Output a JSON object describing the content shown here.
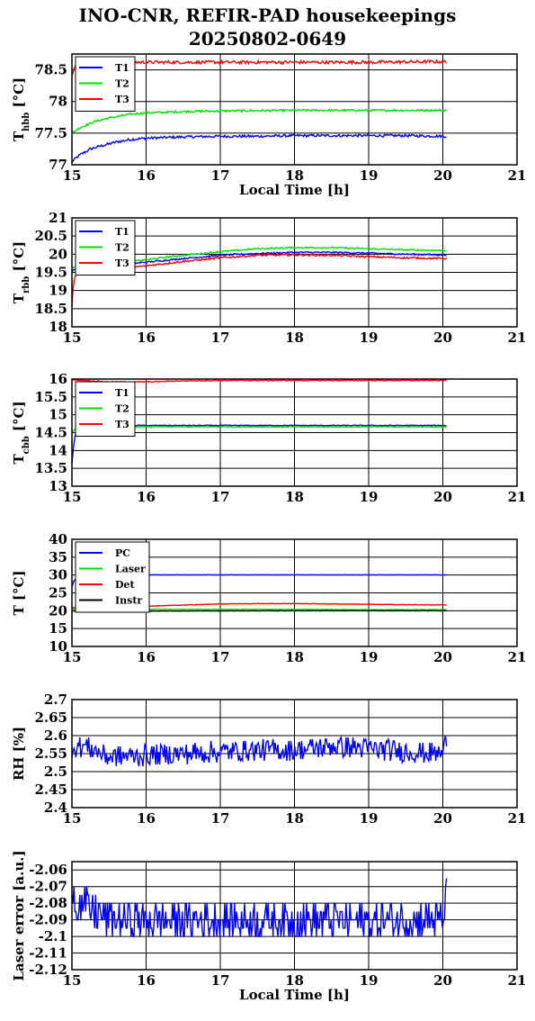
{
  "title_line1": "INO-CNR, REFIR-PAD housekeepings",
  "title_line2": "20250802-0649",
  "chart_data": [
    {
      "type": "line",
      "ylabel_main": "T",
      "ylabel_sub": "hbb",
      "ylabel_unit": "[°C]",
      "xlabel": "Local Time [h]",
      "xlim": [
        15,
        21
      ],
      "ylim": [
        77,
        78.75
      ],
      "yticks": [
        77,
        77.5,
        78,
        78.5
      ],
      "xticks": [
        15,
        16,
        17,
        18,
        19,
        20,
        21
      ],
      "ytick_labels": [
        "77",
        "77.5",
        "78",
        "78.5"
      ],
      "xtick_labels": [
        "15",
        "16",
        "17",
        "18",
        "19",
        "20",
        "21"
      ],
      "grid": true,
      "legend_position": "top-left",
      "series": [
        {
          "name": "T1",
          "color": "#0000ff",
          "points": [
            [
              15,
              77.05
            ],
            [
              15.1,
              77.15
            ],
            [
              15.25,
              77.25
            ],
            [
              15.4,
              77.3
            ],
            [
              15.6,
              77.36
            ],
            [
              15.8,
              77.4
            ],
            [
              16,
              77.42
            ],
            [
              16.5,
              77.44
            ],
            [
              17,
              77.45
            ],
            [
              17.5,
              77.45
            ],
            [
              18,
              77.46
            ],
            [
              18.5,
              77.46
            ],
            [
              19,
              77.46
            ],
            [
              19.5,
              77.46
            ],
            [
              20.05,
              77.45
            ]
          ],
          "noise": 0.02
        },
        {
          "name": "T2",
          "color": "#00e000",
          "points": [
            [
              15,
              77.5
            ],
            [
              15.1,
              77.58
            ],
            [
              15.3,
              77.68
            ],
            [
              15.5,
              77.74
            ],
            [
              15.8,
              77.8
            ],
            [
              16,
              77.82
            ],
            [
              16.5,
              77.84
            ],
            [
              17,
              77.85
            ],
            [
              18,
              77.86
            ],
            [
              19,
              77.86
            ],
            [
              20.05,
              77.86
            ]
          ],
          "noise": 0.015
        },
        {
          "name": "T3",
          "color": "#ff0000",
          "points": [
            [
              15,
              78.4
            ],
            [
              15.03,
              78.55
            ],
            [
              15.1,
              78.6
            ],
            [
              15.5,
              78.62
            ],
            [
              16,
              78.62
            ],
            [
              17,
              78.62
            ],
            [
              18,
              78.62
            ],
            [
              19,
              78.62
            ],
            [
              20.05,
              78.63
            ]
          ],
          "noise": 0.025
        }
      ]
    },
    {
      "type": "line",
      "ylabel_main": "T",
      "ylabel_sub": "rbb",
      "ylabel_unit": "[°C]",
      "xlabel": "",
      "xlim": [
        15,
        21
      ],
      "ylim": [
        18,
        21
      ],
      "yticks": [
        18,
        18.5,
        19,
        19.5,
        20,
        20.5,
        21
      ],
      "xticks": [
        15,
        16,
        17,
        18,
        19,
        20,
        21
      ],
      "ytick_labels": [
        "18",
        "18.5",
        "19",
        "19.5",
        "20",
        "20.5",
        "21"
      ],
      "xtick_labels": [
        "15",
        "16",
        "17",
        "18",
        "19",
        "20",
        "21"
      ],
      "grid": true,
      "legend_position": "top-left",
      "series": [
        {
          "name": "T1",
          "color": "#0000ff",
          "points": [
            [
              15,
              19.55
            ],
            [
              15.2,
              19.6
            ],
            [
              15.5,
              19.68
            ],
            [
              16,
              19.78
            ],
            [
              16.5,
              19.88
            ],
            [
              17,
              19.97
            ],
            [
              17.5,
              20.02
            ],
            [
              18,
              20.05
            ],
            [
              18.5,
              20.05
            ],
            [
              19,
              20.03
            ],
            [
              19.5,
              20.0
            ],
            [
              20.05,
              19.98
            ]
          ],
          "noise": 0.02
        },
        {
          "name": "T2",
          "color": "#00e000",
          "points": [
            [
              15,
              19.62
            ],
            [
              15.2,
              19.67
            ],
            [
              15.5,
              19.73
            ],
            [
              16,
              19.85
            ],
            [
              16.5,
              19.97
            ],
            [
              17,
              20.07
            ],
            [
              17.5,
              20.15
            ],
            [
              18,
              20.18
            ],
            [
              18.5,
              20.18
            ],
            [
              19,
              20.15
            ],
            [
              19.5,
              20.12
            ],
            [
              20.05,
              20.1
            ]
          ],
          "noise": 0.02
        },
        {
          "name": "T3",
          "color": "#ff0000",
          "points": [
            [
              15,
              18.55
            ],
            [
              15.02,
              19.2
            ],
            [
              15.06,
              19.48
            ],
            [
              15.2,
              19.52
            ],
            [
              15.5,
              19.58
            ],
            [
              16,
              19.68
            ],
            [
              16.5,
              19.8
            ],
            [
              17,
              19.9
            ],
            [
              17.5,
              19.97
            ],
            [
              18,
              19.98
            ],
            [
              18.5,
              19.97
            ],
            [
              19,
              19.93
            ],
            [
              19.5,
              19.9
            ],
            [
              20.05,
              19.88
            ]
          ],
          "noise": 0.025
        }
      ]
    },
    {
      "type": "line",
      "ylabel_main": "T",
      "ylabel_sub": "cbb",
      "ylabel_unit": "[°C]",
      "xlabel": "",
      "xlim": [
        15,
        21
      ],
      "ylim": [
        13,
        16
      ],
      "yticks": [
        13,
        13.5,
        14,
        14.5,
        15,
        15.5,
        16
      ],
      "xticks": [
        15,
        16,
        17,
        18,
        19,
        20,
        21
      ],
      "ytick_labels": [
        "13",
        "13.5",
        "14",
        "14.5",
        "15",
        "15.5",
        "16"
      ],
      "xtick_labels": [
        "15",
        "16",
        "17",
        "18",
        "19",
        "20",
        "21"
      ],
      "grid": true,
      "legend_position": "top-left",
      "series": [
        {
          "name": "T1",
          "color": "#0000ff",
          "points": [
            [
              15,
              13.65
            ],
            [
              15.02,
              14.1
            ],
            [
              15.05,
              14.5
            ],
            [
              15.1,
              14.68
            ],
            [
              15.3,
              14.7
            ],
            [
              16,
              14.7
            ],
            [
              17,
              14.7
            ],
            [
              18,
              14.7
            ],
            [
              19,
              14.7
            ],
            [
              20.05,
              14.7
            ]
          ],
          "noise": 0.012
        },
        {
          "name": "T2",
          "color": "#00e000",
          "points": [
            [
              15,
              14.5
            ],
            [
              15.05,
              14.62
            ],
            [
              15.1,
              14.66
            ],
            [
              16,
              14.66
            ],
            [
              17,
              14.66
            ],
            [
              18,
              14.66
            ],
            [
              19,
              14.66
            ],
            [
              20.05,
              14.66
            ]
          ],
          "noise": 0.012
        },
        {
          "name": "T3",
          "color": "#ff0000",
          "points": [
            [
              15,
              15.98
            ],
            [
              15.5,
              15.92
            ],
            [
              16,
              15.92
            ],
            [
              16.5,
              15.95
            ],
            [
              17,
              15.96
            ],
            [
              18,
              15.96
            ],
            [
              19,
              15.96
            ],
            [
              20.05,
              15.96
            ]
          ],
          "noise": 0.012
        }
      ]
    },
    {
      "type": "line",
      "ylabel_main": "T [°C]",
      "ylabel_sub": "",
      "ylabel_unit": "",
      "xlabel": "",
      "xlim": [
        15,
        21
      ],
      "ylim": [
        10,
        40
      ],
      "yticks": [
        10,
        15,
        20,
        25,
        30,
        35,
        40
      ],
      "xticks": [
        15,
        16,
        17,
        18,
        19,
        20,
        21
      ],
      "ytick_labels": [
        "10",
        "15",
        "20",
        "25",
        "30",
        "35",
        "40"
      ],
      "xtick_labels": [
        "15",
        "16",
        "17",
        "18",
        "19",
        "20",
        "21"
      ],
      "grid": true,
      "legend_position": "top-left",
      "series": [
        {
          "name": "PC",
          "color": "#0000ff",
          "points": [
            [
              15,
              26.8
            ],
            [
              15.03,
              28.5
            ],
            [
              15.1,
              29.5
            ],
            [
              15.3,
              29.9
            ],
            [
              15.6,
              30
            ],
            [
              16,
              30.05
            ],
            [
              17,
              30.05
            ],
            [
              18,
              30.05
            ],
            [
              19,
              30.05
            ],
            [
              20.05,
              30.05
            ]
          ],
          "noise": 0.05
        },
        {
          "name": "Laser",
          "color": "#00e000",
          "points": [
            [
              15,
              20.4
            ],
            [
              16,
              20.4
            ],
            [
              17,
              20.4
            ],
            [
              18,
              20.4
            ],
            [
              19,
              20.3
            ],
            [
              20.05,
              20.3
            ]
          ],
          "noise": 0.05
        },
        {
          "name": "Det",
          "color": "#ff0000",
          "points": [
            [
              15,
              20.8
            ],
            [
              15.5,
              21.0
            ],
            [
              16,
              21.3
            ],
            [
              16.5,
              21.6
            ],
            [
              17,
              21.9
            ],
            [
              17.5,
              22.0
            ],
            [
              18,
              22.0
            ],
            [
              18.5,
              21.9
            ],
            [
              19,
              21.8
            ],
            [
              19.5,
              21.7
            ],
            [
              20.05,
              21.6
            ]
          ],
          "noise": 0.06
        },
        {
          "name": "Instr",
          "color": "#000000",
          "points": [
            [
              15,
              19.9
            ],
            [
              16,
              19.9
            ],
            [
              17,
              19.95
            ],
            [
              18,
              20.0
            ],
            [
              19,
              20.0
            ],
            [
              20.05,
              20.0
            ]
          ],
          "noise": 0.04
        }
      ]
    },
    {
      "type": "line",
      "ylabel_main": "RH [%]",
      "ylabel_sub": "",
      "ylabel_unit": "",
      "xlabel": "",
      "xlim": [
        15,
        21
      ],
      "ylim": [
        2.4,
        2.7
      ],
      "yticks": [
        2.4,
        2.45,
        2.5,
        2.55,
        2.6,
        2.65,
        2.7
      ],
      "xticks": [
        15,
        16,
        17,
        18,
        19,
        20,
        21
      ],
      "ytick_labels": [
        "2.4",
        "2.45",
        "2.5",
        "2.55",
        "2.6",
        "2.65",
        "2.7"
      ],
      "xtick_labels": [
        "15",
        "16",
        "17",
        "18",
        "19",
        "20",
        "21"
      ],
      "grid": true,
      "legend_position": "none",
      "series": [
        {
          "name": "",
          "color": "#0000ff",
          "points": [
            [
              15,
              2.57
            ],
            [
              15.2,
              2.57
            ],
            [
              15.5,
              2.54
            ],
            [
              16,
              2.545
            ],
            [
              16.5,
              2.55
            ],
            [
              17,
              2.555
            ],
            [
              17.5,
              2.56
            ],
            [
              18,
              2.56
            ],
            [
              18.5,
              2.57
            ],
            [
              19,
              2.565
            ],
            [
              19.5,
              2.555
            ],
            [
              20,
              2.55
            ],
            [
              20.05,
              2.59
            ]
          ],
          "noise": 0.03,
          "steps": [
            0.005
          ]
        }
      ]
    },
    {
      "type": "line",
      "ylabel_main": "Laser error [a.u.]",
      "ylabel_sub": "",
      "ylabel_unit": "",
      "xlabel": "Local Time [h]",
      "xlim": [
        15,
        21
      ],
      "ylim": [
        -2.12,
        -2.055
      ],
      "yticks": [
        -2.12,
        -2.11,
        -2.1,
        -2.09,
        -2.08,
        -2.07,
        -2.06
      ],
      "xticks": [
        15,
        16,
        17,
        18,
        19,
        20,
        21
      ],
      "ytick_labels": [
        "-2.12",
        "-2.11",
        "-2.1",
        "-2.09",
        "-2.08",
        "-2.07",
        "-2.06"
      ],
      "xtick_labels": [
        "15",
        "16",
        "17",
        "18",
        "19",
        "20",
        "21"
      ],
      "grid": true,
      "legend_position": "none",
      "series": [
        {
          "name": "",
          "color": "#0000ff",
          "points": [
            [
              15,
              -2.065
            ],
            [
              15.05,
              -2.08
            ],
            [
              15.5,
              -2.09
            ],
            [
              16,
              -2.09
            ],
            [
              17,
              -2.09
            ],
            [
              18,
              -2.09
            ],
            [
              19,
              -2.09
            ],
            [
              20,
              -2.09
            ],
            [
              20.05,
              -2.075
            ]
          ],
          "noise": 0.012,
          "steps": [
            0.005
          ]
        }
      ]
    }
  ]
}
